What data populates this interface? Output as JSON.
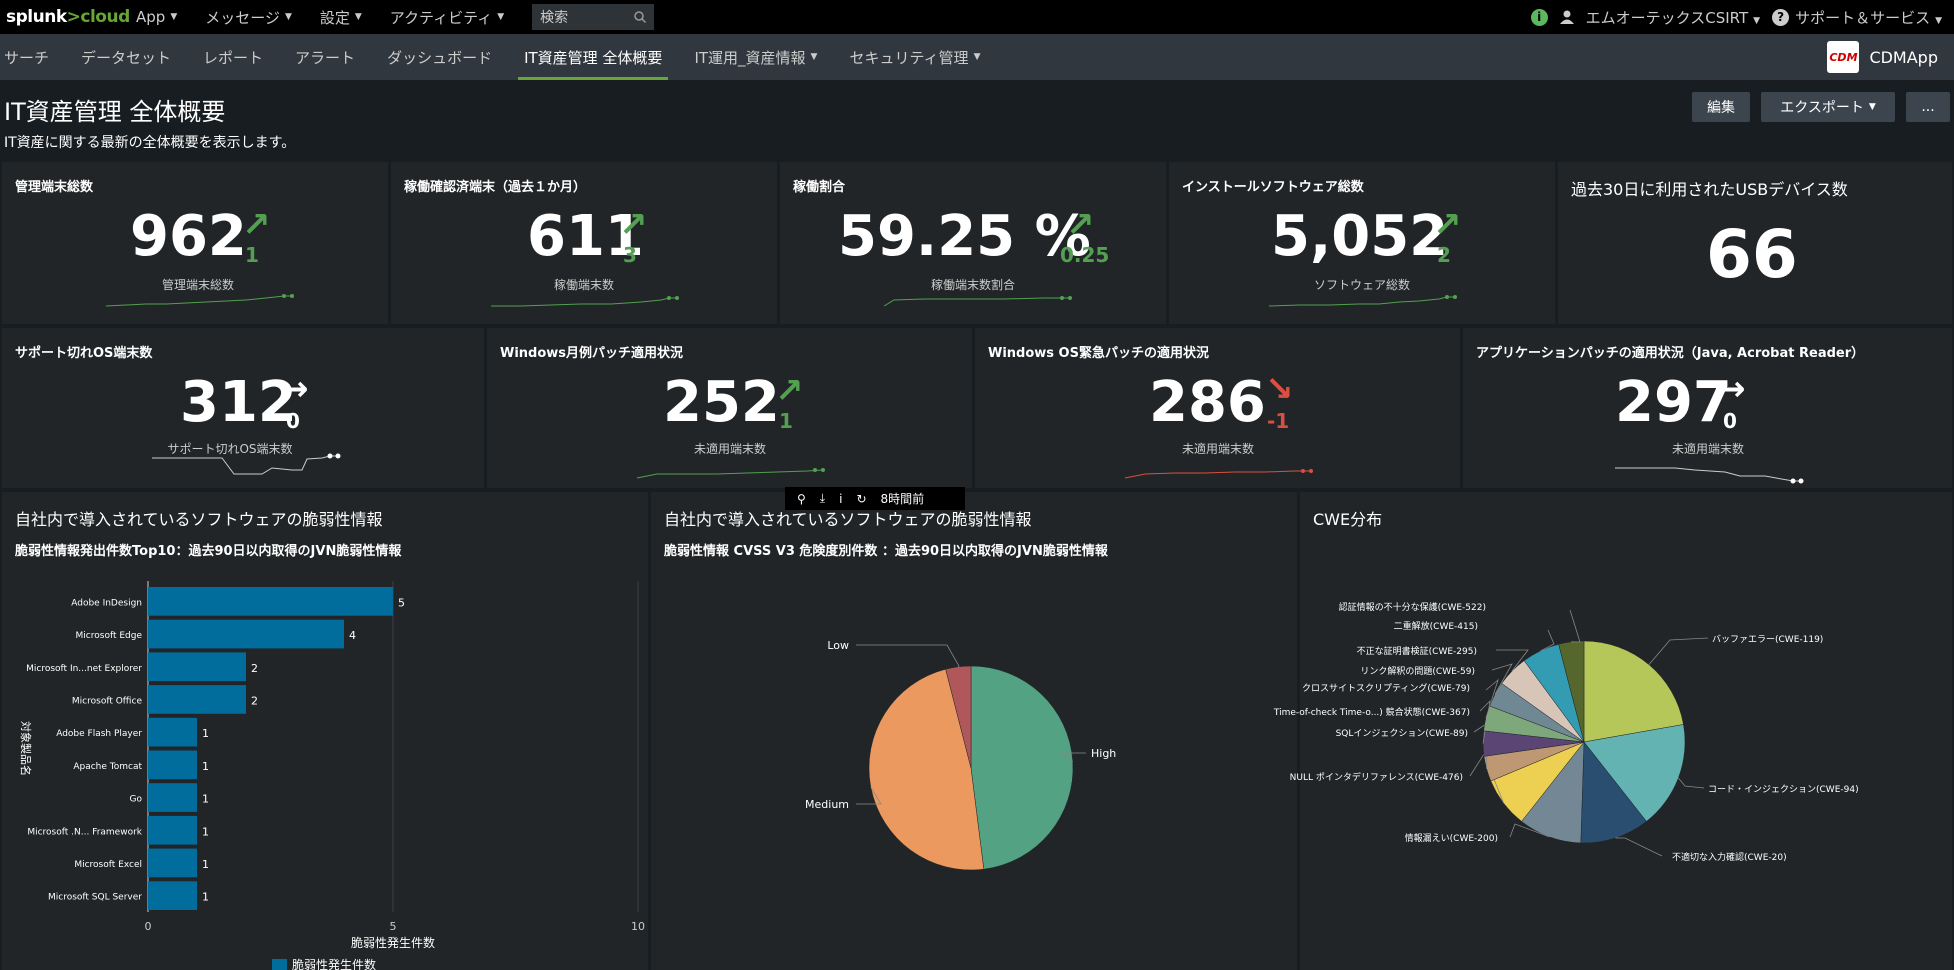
{
  "topbar": {
    "logo_a": "splunk",
    "logo_b": ">cloud",
    "menus": [
      "App",
      "メッセージ",
      "設定",
      "アクティビティ"
    ],
    "search_label": "検索",
    "user": "エムオーテックスCSIRT",
    "support": "サポート＆サービス"
  },
  "navbar": {
    "items": [
      "サーチ",
      "データセット",
      "レポート",
      "アラート",
      "ダッシュボード",
      "IT資産管理 全体概要",
      "IT運用_資産情報",
      "セキュリティ管理"
    ],
    "app_icon": "CDM",
    "app_name": "CDMApp"
  },
  "header": {
    "title": "IT資産管理 全体概要",
    "description": "IT資産に関する最新の全体概要を表示します。",
    "edit": "編集",
    "export": "エクスポート",
    "more": "..."
  },
  "single_values": [
    {
      "title": "管理端末総数",
      "value": "962",
      "delta": "1",
      "trend": "up",
      "unit": "管理端末総数"
    },
    {
      "title": "稼働確認済端末（過去１か月）",
      "value": "611",
      "delta": "3",
      "trend": "up",
      "unit": "稼働端末数"
    },
    {
      "title": "稼働割合",
      "value": "59.25 %",
      "delta": "0.25",
      "trend": "up",
      "unit": "稼働端末数割合"
    },
    {
      "title": "インストールソフトウェア総数",
      "value": "5,052",
      "delta": "2",
      "trend": "up",
      "unit": "ソフトウェア総数"
    },
    {
      "title": "過去30日に利用されたUSBデバイス数",
      "value": "66"
    },
    {
      "title": "サポート切れOS端末数",
      "value": "312",
      "delta": "0",
      "trend": "flat",
      "unit": "サポート切れOS端末数"
    },
    {
      "title": "Windows月例パッチ適用状況",
      "value": "252",
      "delta": "1",
      "trend": "up",
      "unit": "未適用端末数"
    },
    {
      "title": "Windows OS緊急パッチの適用状況",
      "value": "286",
      "delta": "-1",
      "trend": "down",
      "unit": "未適用端末数"
    },
    {
      "title": "アプリケーションパッチの適用状況（Java, Acrobat Reader）",
      "value": "297",
      "delta": "0",
      "trend": "flat",
      "unit": "未適用端末数"
    }
  ],
  "hover_toolbar": {
    "time": "8時間前"
  },
  "panels": {
    "bar_title": "自社内で導入されているソフトウェアの脆弱性情報",
    "bar_subtitle": "脆弱性情報発出件数Top10：過去90日以内取得のJVN脆弱性情報",
    "pie_title": "自社内で導入されているソフトウェアの脆弱性情報",
    "pie_subtitle": "脆弱性情報 CVSS V3 危険度別件数 ：過去90日以内取得のJVN脆弱性情報",
    "cwe_title": "CWE分布"
  },
  "chart_data": [
    {
      "type": "bar",
      "orientation": "horizontal",
      "categories": [
        "Adobe InDesign",
        "Microsoft Edge",
        "Microsoft In...net Explorer",
        "Microsoft Office",
        "Adobe Flash Player",
        "Apache Tomcat",
        "Go",
        "Microsoft .N... Framework",
        "Microsoft Excel",
        "Microsoft SQL Server"
      ],
      "series": [
        {
          "name": "脆弱性発生件数",
          "values": [
            5,
            4,
            2,
            2,
            1,
            1,
            1,
            1,
            1,
            1
          ]
        }
      ],
      "xlabel": "脆弱性発生件数",
      "ylabel": "対象製品名",
      "xlim": [
        0,
        10
      ],
      "xticks": [
        0,
        5,
        10
      ],
      "legend": "bottom",
      "color": "#006d9c"
    },
    {
      "type": "pie",
      "labels": [
        "High",
        "Medium",
        "Low"
      ],
      "values": [
        48,
        48,
        4
      ],
      "colors": [
        "#53a283",
        "#ec9960",
        "#af575a"
      ]
    },
    {
      "type": "pie",
      "labels": [
        "バッファエラー(CWE-119)",
        "コード・インジェクション(CWE-94)",
        "不適切な入力確認(CWE-20)",
        "情報漏えい(CWE-200)",
        "NULL ポインタデリファレンス(CWE-476)",
        "SQLインジェクション(CWE-89)",
        "Time-of-check Time-o...) 競合状態(CWE-367)",
        "クロスサイトスクリプティング(CWE-79)",
        "リンク解釈の問題(CWE-59)",
        "不正な証明書検証(CWE-295)",
        "二重解放(CWE-415)",
        "認証情報の不十分な保護(CWE-522)"
      ],
      "values": [
        22,
        17,
        11,
        10,
        8,
        4,
        4,
        4,
        4,
        5,
        6,
        4
      ],
      "colors": [
        "#b6c75a",
        "#62b3b2",
        "#294e70",
        "#738795",
        "#edd051",
        "#bd9872",
        "#5a4575",
        "#7ea77b",
        "#708794",
        "#d7c6b7",
        "#339bb2",
        "#55672d"
      ]
    }
  ]
}
